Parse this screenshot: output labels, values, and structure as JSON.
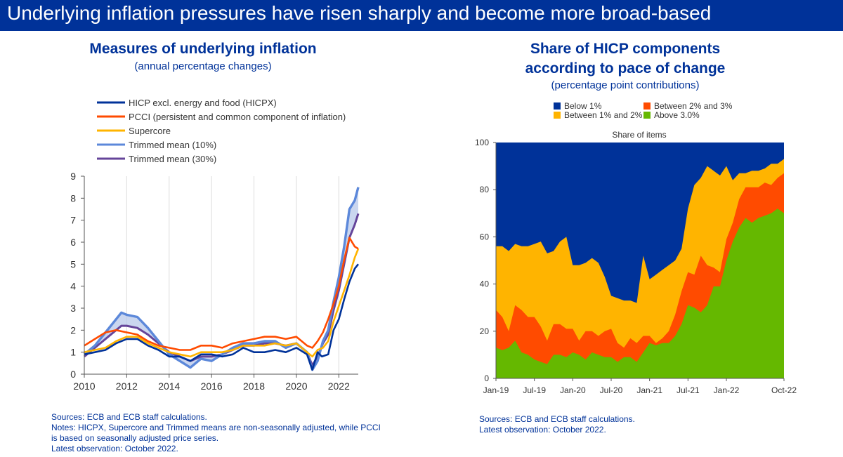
{
  "header": {
    "title": "Underlying inflation pressures have risen sharply and become more broad-based"
  },
  "left_panel": {
    "title": "Measures of underlying inflation",
    "subtitle": "(annual percentage changes)",
    "notes": [
      "Sources: ECB and ECB staff calculations.",
      "Notes: HICPX, Supercore and Trimmed means are non-seasonally adjusted, while PCCI",
      "is based on seasonally adjusted price series.",
      "Latest observation: October 2022."
    ]
  },
  "right_panel": {
    "title_line1": "Share of HICP components",
    "title_line2": "according to pace of change",
    "subtitle": "(percentage point contributions)",
    "notes": [
      "Sources: ECB and ECB staff calculations.",
      "Latest observation: October 2022."
    ]
  },
  "chart_data": [
    {
      "type": "line",
      "title": "Measures of underlying inflation",
      "subtitle": "(annual percentage changes)",
      "xlim": [
        2010.0,
        2022.917
      ],
      "ylim": [
        0,
        9
      ],
      "x_ticks": [
        2010,
        2012,
        2014,
        2016,
        2018,
        2020,
        2022
      ],
      "y_ticks": [
        0,
        1,
        2,
        3,
        4,
        5,
        6,
        7,
        8,
        9
      ],
      "grid": "vertical",
      "legend_position": "top-left",
      "band": {
        "between": [
          "Trimmed mean (10%)",
          "Trimmed mean (30%)"
        ],
        "color": "#b8c8ea"
      },
      "series": [
        {
          "name": "HICP excl. energy and food (HICPX)",
          "color": "#003299",
          "width": 2.6,
          "points": [
            [
              2010.0,
              0.9
            ],
            [
              2010.5,
              1.0
            ],
            [
              2011.0,
              1.1
            ],
            [
              2011.5,
              1.4
            ],
            [
              2012.0,
              1.6
            ],
            [
              2012.5,
              1.6
            ],
            [
              2013.0,
              1.3
            ],
            [
              2013.5,
              1.1
            ],
            [
              2014.0,
              0.8
            ],
            [
              2014.5,
              0.8
            ],
            [
              2015.0,
              0.6
            ],
            [
              2015.5,
              0.9
            ],
            [
              2016.0,
              0.9
            ],
            [
              2016.5,
              0.8
            ],
            [
              2017.0,
              0.9
            ],
            [
              2017.5,
              1.2
            ],
            [
              2018.0,
              1.0
            ],
            [
              2018.5,
              1.0
            ],
            [
              2019.0,
              1.1
            ],
            [
              2019.5,
              1.0
            ],
            [
              2020.0,
              1.2
            ],
            [
              2020.5,
              0.9
            ],
            [
              2020.75,
              0.2
            ],
            [
              2021.0,
              1.0
            ],
            [
              2021.2,
              0.8
            ],
            [
              2021.5,
              0.9
            ],
            [
              2021.75,
              2.0
            ],
            [
              2022.0,
              2.5
            ],
            [
              2022.25,
              3.4
            ],
            [
              2022.5,
              4.2
            ],
            [
              2022.75,
              4.8
            ],
            [
              2022.917,
              5.0
            ]
          ]
        },
        {
          "name": "PCCI (persistent and common component of inflation)",
          "color": "#ff4b00",
          "width": 2.6,
          "points": [
            [
              2010.0,
              1.3
            ],
            [
              2010.5,
              1.6
            ],
            [
              2011.0,
              1.9
            ],
            [
              2011.5,
              2.0
            ],
            [
              2012.0,
              1.9
            ],
            [
              2012.5,
              1.8
            ],
            [
              2013.0,
              1.5
            ],
            [
              2013.5,
              1.3
            ],
            [
              2014.0,
              1.2
            ],
            [
              2014.5,
              1.1
            ],
            [
              2015.0,
              1.1
            ],
            [
              2015.5,
              1.3
            ],
            [
              2016.0,
              1.3
            ],
            [
              2016.5,
              1.2
            ],
            [
              2017.0,
              1.4
            ],
            [
              2017.5,
              1.5
            ],
            [
              2018.0,
              1.6
            ],
            [
              2018.5,
              1.7
            ],
            [
              2019.0,
              1.7
            ],
            [
              2019.5,
              1.6
            ],
            [
              2020.0,
              1.7
            ],
            [
              2020.5,
              1.3
            ],
            [
              2020.75,
              1.2
            ],
            [
              2021.0,
              1.5
            ],
            [
              2021.25,
              1.9
            ],
            [
              2021.5,
              2.5
            ],
            [
              2021.75,
              3.2
            ],
            [
              2022.0,
              4.0
            ],
            [
              2022.25,
              5.2
            ],
            [
              2022.5,
              6.2
            ],
            [
              2022.75,
              5.8
            ],
            [
              2022.917,
              5.7
            ]
          ]
        },
        {
          "name": "Supercore",
          "color": "#ffb400",
          "width": 2.6,
          "points": [
            [
              2010.0,
              1.0
            ],
            [
              2010.5,
              1.1
            ],
            [
              2011.0,
              1.2
            ],
            [
              2011.5,
              1.5
            ],
            [
              2012.0,
              1.7
            ],
            [
              2012.5,
              1.7
            ],
            [
              2013.0,
              1.4
            ],
            [
              2013.5,
              1.2
            ],
            [
              2014.0,
              1.0
            ],
            [
              2014.5,
              0.9
            ],
            [
              2015.0,
              0.8
            ],
            [
              2015.5,
              1.0
            ],
            [
              2016.0,
              1.0
            ],
            [
              2016.5,
              1.0
            ],
            [
              2017.0,
              1.1
            ],
            [
              2017.5,
              1.3
            ],
            [
              2018.0,
              1.3
            ],
            [
              2018.5,
              1.3
            ],
            [
              2019.0,
              1.4
            ],
            [
              2019.5,
              1.3
            ],
            [
              2020.0,
              1.4
            ],
            [
              2020.5,
              1.0
            ],
            [
              2020.75,
              0.8
            ],
            [
              2021.0,
              1.1
            ],
            [
              2021.25,
              1.2
            ],
            [
              2021.5,
              1.5
            ],
            [
              2021.75,
              2.4
            ],
            [
              2022.0,
              3.1
            ],
            [
              2022.25,
              3.8
            ],
            [
              2022.5,
              4.5
            ],
            [
              2022.75,
              5.3
            ],
            [
              2022.917,
              5.7
            ]
          ]
        },
        {
          "name": "Trimmed mean (10%)",
          "color": "#5c88da",
          "width": 3.4,
          "points": [
            [
              2010.0,
              0.9
            ],
            [
              2010.5,
              1.3
            ],
            [
              2011.0,
              1.9
            ],
            [
              2011.5,
              2.5
            ],
            [
              2011.75,
              2.8
            ],
            [
              2012.0,
              2.7
            ],
            [
              2012.5,
              2.6
            ],
            [
              2013.0,
              2.1
            ],
            [
              2013.5,
              1.5
            ],
            [
              2014.0,
              0.9
            ],
            [
              2014.5,
              0.6
            ],
            [
              2015.0,
              0.3
            ],
            [
              2015.5,
              0.7
            ],
            [
              2016.0,
              0.6
            ],
            [
              2016.5,
              0.9
            ],
            [
              2017.0,
              1.2
            ],
            [
              2017.5,
              1.4
            ],
            [
              2018.0,
              1.4
            ],
            [
              2018.5,
              1.5
            ],
            [
              2019.0,
              1.5
            ],
            [
              2019.5,
              1.2
            ],
            [
              2020.0,
              1.4
            ],
            [
              2020.5,
              1.0
            ],
            [
              2020.75,
              0.2
            ],
            [
              2021.0,
              0.6
            ],
            [
              2021.25,
              1.5
            ],
            [
              2021.5,
              2.0
            ],
            [
              2021.75,
              3.3
            ],
            [
              2022.0,
              4.4
            ],
            [
              2022.25,
              5.8
            ],
            [
              2022.5,
              7.5
            ],
            [
              2022.75,
              7.9
            ],
            [
              2022.917,
              8.5
            ]
          ]
        },
        {
          "name": "Trimmed mean (30%)",
          "color": "#65459a",
          "width": 3.0,
          "points": [
            [
              2010.0,
              0.8
            ],
            [
              2010.5,
              1.2
            ],
            [
              2011.0,
              1.6
            ],
            [
              2011.5,
              2.0
            ],
            [
              2011.75,
              2.2
            ],
            [
              2012.0,
              2.2
            ],
            [
              2012.5,
              2.1
            ],
            [
              2013.0,
              1.8
            ],
            [
              2013.5,
              1.4
            ],
            [
              2014.0,
              1.0
            ],
            [
              2014.5,
              0.8
            ],
            [
              2015.0,
              0.6
            ],
            [
              2015.5,
              0.8
            ],
            [
              2016.0,
              0.8
            ],
            [
              2016.5,
              0.9
            ],
            [
              2017.0,
              1.1
            ],
            [
              2017.5,
              1.3
            ],
            [
              2018.0,
              1.3
            ],
            [
              2018.5,
              1.4
            ],
            [
              2019.0,
              1.4
            ],
            [
              2019.5,
              1.3
            ],
            [
              2020.0,
              1.4
            ],
            [
              2020.5,
              1.0
            ],
            [
              2020.75,
              0.4
            ],
            [
              2021.0,
              0.8
            ],
            [
              2021.25,
              1.4
            ],
            [
              2021.5,
              1.8
            ],
            [
              2021.75,
              2.9
            ],
            [
              2022.0,
              3.8
            ],
            [
              2022.25,
              5.0
            ],
            [
              2022.5,
              6.2
            ],
            [
              2022.75,
              6.8
            ],
            [
              2022.917,
              7.3
            ]
          ]
        }
      ]
    },
    {
      "type": "area",
      "title": "Share of HICP components according to pace of change",
      "subtitle": "(percentage point contributions)",
      "inner_label": "Share of items",
      "x_tick_labels": [
        "Jan-19",
        "Jul-19",
        "Jan-20",
        "Jul-20",
        "Jan-21",
        "Jul-21",
        "Jan-22",
        "Oct-22"
      ],
      "x_tick_index": [
        0,
        6,
        12,
        18,
        24,
        30,
        36,
        45
      ],
      "ylim": [
        0,
        100
      ],
      "y_ticks": [
        0,
        20,
        40,
        60,
        80,
        100
      ],
      "legend_position": "top",
      "months": [
        "Jan-19",
        "Feb-19",
        "Mar-19",
        "Apr-19",
        "May-19",
        "Jun-19",
        "Jul-19",
        "Aug-19",
        "Sep-19",
        "Oct-19",
        "Nov-19",
        "Dec-19",
        "Jan-20",
        "Feb-20",
        "Mar-20",
        "Apr-20",
        "May-20",
        "Jun-20",
        "Jul-20",
        "Aug-20",
        "Sep-20",
        "Oct-20",
        "Nov-20",
        "Dec-20",
        "Jan-21",
        "Feb-21",
        "Mar-21",
        "Apr-21",
        "May-21",
        "Jun-21",
        "Jul-21",
        "Aug-21",
        "Sep-21",
        "Oct-21",
        "Nov-21",
        "Dec-21",
        "Jan-22",
        "Feb-22",
        "Mar-22",
        "Apr-22",
        "May-22",
        "Jun-22",
        "Jul-22",
        "Aug-22",
        "Sep-22",
        "Oct-22"
      ],
      "series": [
        {
          "name": "Above 3.0%",
          "color": "#65b800",
          "cumulative": [
            13,
            12,
            13,
            16,
            11,
            10,
            8,
            7,
            6,
            10,
            10,
            9,
            11,
            10,
            8,
            11,
            10,
            9,
            9,
            7,
            9,
            9,
            7,
            11,
            15,
            14,
            15,
            15,
            18,
            23,
            31,
            30,
            28,
            31,
            39,
            39,
            50,
            58,
            64,
            68,
            66,
            68,
            69,
            70,
            72,
            70
          ]
        },
        {
          "name": "Between 2% and 3%",
          "color": "#ff4b00",
          "cumulative": [
            29,
            26,
            20,
            31,
            29,
            26,
            26,
            22,
            16,
            23,
            23,
            21,
            21,
            16,
            20,
            20,
            18,
            20,
            21,
            15,
            13,
            17,
            15,
            18,
            18,
            15,
            17,
            20,
            27,
            37,
            45,
            44,
            52,
            48,
            47,
            45,
            59,
            66,
            76,
            81,
            81,
            81,
            83,
            82,
            85,
            87
          ]
        },
        {
          "name": "Between 1% and 2%",
          "color": "#ffb400",
          "cumulative": [
            56,
            56,
            54,
            57,
            56,
            56,
            57,
            58,
            53,
            54,
            58,
            60,
            48,
            48,
            49,
            51,
            49,
            43,
            35,
            34,
            33,
            33,
            32,
            52,
            42,
            44,
            46,
            48,
            50,
            55,
            72,
            82,
            85,
            90,
            88,
            86,
            90,
            84,
            87,
            87,
            88,
            88,
            89,
            91,
            91,
            93
          ]
        },
        {
          "name": "Below 1%",
          "color": "#003299",
          "cumulative": [
            100,
            100,
            100,
            100,
            100,
            100,
            100,
            100,
            100,
            100,
            100,
            100,
            100,
            100,
            100,
            100,
            100,
            100,
            100,
            100,
            100,
            100,
            100,
            100,
            100,
            100,
            100,
            100,
            100,
            100,
            100,
            100,
            100,
            100,
            100,
            100,
            100,
            100,
            100,
            100,
            100,
            100,
            100,
            100,
            100,
            100
          ]
        }
      ]
    }
  ]
}
